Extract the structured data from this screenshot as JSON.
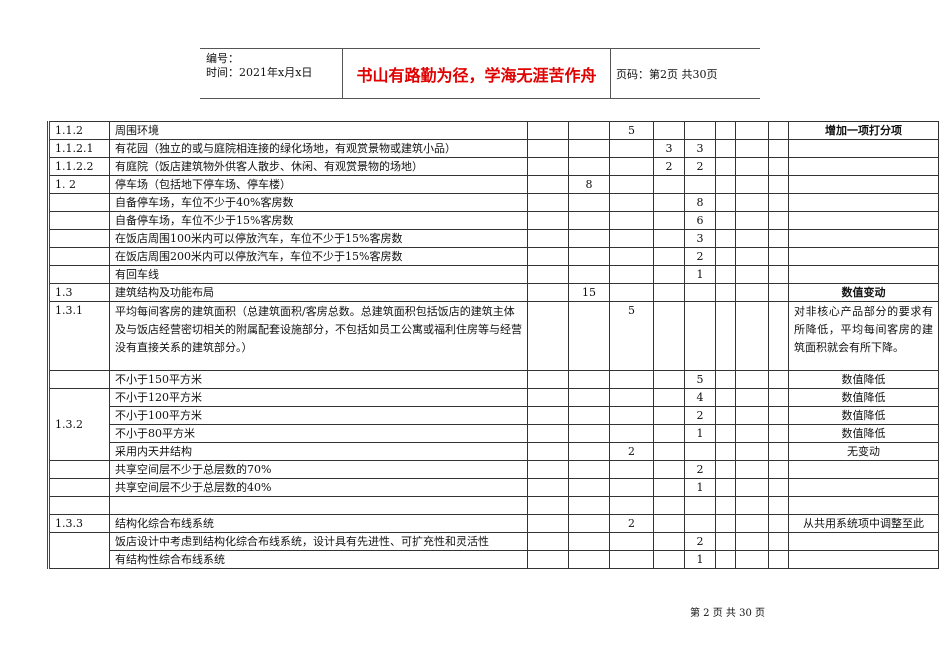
{
  "header": {
    "number_label": "编号：",
    "time_label": "时间：2021年x月x日",
    "motto": "书山有路勤为径，学海无涯苦作舟",
    "page_label": "页码：第2页  共30页"
  },
  "rows": [
    {
      "code": "1.1.2",
      "item": "周围环境",
      "c3": "",
      "c4": "",
      "c5": "5",
      "c6": "",
      "c7": "",
      "note": "增加一项打分项"
    },
    {
      "code": "1.1.2.1",
      "item": "有花园（独立的或与庭院相连接的绿化场地，有观赏景物或建筑小品）",
      "c3": "",
      "c4": "",
      "c5": "",
      "c6": "3",
      "c7": "3",
      "note": ""
    },
    {
      "code": "1.1.2.2",
      "item": "有庭院（饭店建筑物外供客人散步、休闲、有观赏景物的场地）",
      "c3": "",
      "c4": "",
      "c5": "",
      "c6": "2",
      "c7": "2",
      "note": ""
    },
    {
      "code": "1. 2",
      "item": "停车场（包括地下停车场、停车楼）",
      "c3": "",
      "c4": "8",
      "c5": "",
      "c6": "",
      "c7": "",
      "note": ""
    },
    {
      "code": "",
      "item": "自备停车场，车位不少于40%客房数",
      "c3": "",
      "c4": "",
      "c5": "",
      "c6": "",
      "c7": "8",
      "note": ""
    },
    {
      "code": "",
      "item": "自备停车场，车位不少于15%客房数",
      "c3": "",
      "c4": "",
      "c5": "",
      "c6": "",
      "c7": "6",
      "note": ""
    },
    {
      "code": "",
      "item": "在饭店周围100米内可以停放汽车，车位不少于15%客房数",
      "c3": "",
      "c4": "",
      "c5": "",
      "c6": "",
      "c7": "3",
      "note": ""
    },
    {
      "code": "",
      "item": "在饭店周围200米内可以停放汽车，车位不少于15%客房数",
      "c3": "",
      "c4": "",
      "c5": "",
      "c6": "",
      "c7": "2",
      "note": ""
    },
    {
      "code": "",
      "item": "有回车线",
      "c3": "",
      "c4": "",
      "c5": "",
      "c6": "",
      "c7": "1",
      "note": ""
    },
    {
      "code": "1.3",
      "item": "建筑结构及功能布局",
      "c3": "",
      "c4": "15",
      "c5": "",
      "c6": "",
      "c7": "",
      "note": "数值变动"
    },
    {
      "code": "1.3.1",
      "item": "平均每间客房的建筑面积（总建筑面积/客房总数。总建筑面积包括饭店的建筑主体及与饭店经营密切相关的附属配套设施部分，不包括如员工公寓或福利住房等与经营没有直接关系的建筑部分。）",
      "c3": "",
      "c4": "",
      "c5": "5",
      "c6": "",
      "c7": "",
      "note": "对非核心产品部分的要求有所降低，平均每间客房的建筑面积就会有所下降。"
    },
    {
      "code": "",
      "item": "不小于150平方米",
      "c3": "",
      "c4": "",
      "c5": "",
      "c6": "",
      "c7": "5",
      "note": "数值降低"
    },
    {
      "code": "1.3.2",
      "item": "不小于120平方米",
      "c3": "",
      "c4": "",
      "c5": "",
      "c6": "",
      "c7": "4",
      "note": "数值降低"
    },
    {
      "code": "",
      "item": "不小于100平方米",
      "c3": "",
      "c4": "",
      "c5": "",
      "c6": "",
      "c7": "2",
      "note": "数值降低"
    },
    {
      "code": "",
      "item": "不小于80平方米",
      "c3": "",
      "c4": "",
      "c5": "",
      "c6": "",
      "c7": "1",
      "note": "数值降低"
    },
    {
      "code": "",
      "item": "采用内天井结构",
      "c3": "",
      "c4": "",
      "c5": "2",
      "c6": "",
      "c7": "",
      "note": "无变动"
    },
    {
      "code": "",
      "item": "共享空间层不少于总层数的70%",
      "c3": "",
      "c4": "",
      "c5": "",
      "c6": "",
      "c7": "2",
      "note": ""
    },
    {
      "code": "",
      "item": "共享空间层不少于总层数的40%",
      "c3": "",
      "c4": "",
      "c5": "",
      "c6": "",
      "c7": "1",
      "note": ""
    },
    {
      "code": "",
      "item": "",
      "c3": "",
      "c4": "",
      "c5": "",
      "c6": "",
      "c7": "",
      "note": ""
    },
    {
      "code": "1.3.3",
      "item": "结构化综合布线系统",
      "c3": "",
      "c4": "",
      "c5": "2",
      "c6": "",
      "c7": "",
      "note": "从共用系统项中调整至此"
    },
    {
      "code": "",
      "item": "饭店设计中考虑到结构化综合布线系统，设计具有先进性、可扩充性和灵活性",
      "c3": "",
      "c4": "",
      "c5": "",
      "c6": "",
      "c7": "2",
      "note": ""
    },
    {
      "code": "",
      "item": "有结构性综合布线系统",
      "c3": "",
      "c4": "",
      "c5": "",
      "c6": "",
      "c7": "1",
      "note": ""
    }
  ],
  "footer": "第 2 页 共 30 页"
}
